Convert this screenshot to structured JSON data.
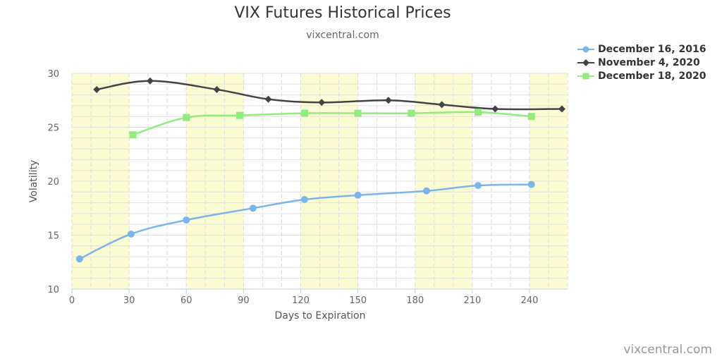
{
  "chart_data": {
    "type": "line",
    "title": "VIX Futures Historical Prices",
    "subtitle": "vixcentral.com",
    "xlabel": "Days to Expiration",
    "ylabel": "Volatility",
    "xlim": [
      0,
      260
    ],
    "ylim": [
      10,
      30
    ],
    "x_ticks": [
      0,
      30,
      60,
      90,
      120,
      150,
      180,
      210,
      240
    ],
    "y_ticks": [
      10,
      15,
      20,
      25,
      30
    ],
    "grid": true,
    "alternate_bands": {
      "color": "#fcfcd2",
      "ranges": [
        [
          0,
          30
        ],
        [
          60,
          90
        ],
        [
          120,
          150
        ],
        [
          180,
          210
        ],
        [
          240,
          260
        ]
      ]
    },
    "legend_position": "top-right",
    "series": [
      {
        "name": "December 16, 2016",
        "color": "#7cb5ec",
        "marker": "circle",
        "points": [
          [
            4,
            12.8
          ],
          [
            31,
            15.1
          ],
          [
            60,
            16.4
          ],
          [
            95,
            17.5
          ],
          [
            122,
            18.3
          ],
          [
            150,
            18.7
          ],
          [
            186,
            19.1
          ],
          [
            213,
            19.6
          ],
          [
            241,
            19.7
          ]
        ]
      },
      {
        "name": "November 4, 2020",
        "color": "#434348",
        "marker": "diamond",
        "points": [
          [
            13,
            28.5
          ],
          [
            41,
            29.3
          ],
          [
            76,
            28.5
          ],
          [
            103,
            27.6
          ],
          [
            131,
            27.3
          ],
          [
            166,
            27.5
          ],
          [
            194,
            27.1
          ],
          [
            222,
            26.7
          ],
          [
            257,
            26.7
          ]
        ]
      },
      {
        "name": "December 18, 2020",
        "color": "#90ed7d",
        "marker": "square",
        "points": [
          [
            32,
            24.3
          ],
          [
            60,
            25.9
          ],
          [
            88,
            26.1
          ],
          [
            122,
            26.3
          ],
          [
            150,
            26.3
          ],
          [
            178,
            26.3
          ],
          [
            213,
            26.4
          ],
          [
            241,
            26.0
          ]
        ]
      }
    ]
  },
  "credit": "vixcentral.com"
}
